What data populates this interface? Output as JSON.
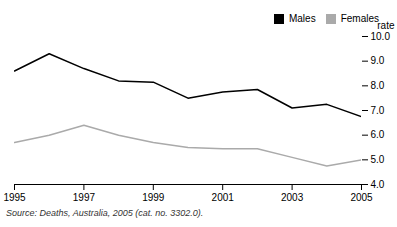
{
  "chart_data": {
    "type": "line",
    "x": [
      1995,
      1996,
      1997,
      1998,
      1999,
      2000,
      2001,
      2002,
      2003,
      2004,
      2005
    ],
    "series": [
      {
        "name": "Males",
        "color": "#000000",
        "values": [
          8.6,
          9.3,
          8.7,
          8.2,
          8.15,
          7.5,
          7.75,
          7.85,
          7.1,
          7.25,
          6.75
        ]
      },
      {
        "name": "Females",
        "color": "#aaaaaa",
        "values": [
          5.7,
          6.0,
          6.4,
          6.0,
          5.7,
          5.5,
          5.45,
          5.45,
          5.1,
          4.75,
          5.0
        ]
      }
    ],
    "xlim": [
      1995,
      2005
    ],
    "xticks": [
      1995,
      1997,
      1999,
      2001,
      2003,
      2005
    ],
    "ylim": [
      4,
      10
    ],
    "yticks": [
      4,
      5,
      6,
      7,
      8,
      9,
      10
    ],
    "ylabel": "rate",
    "legend": "upper right",
    "grid": false,
    "caption": "Source: Deaths, Australia, 2005 (cat. no. 3302.0)."
  }
}
